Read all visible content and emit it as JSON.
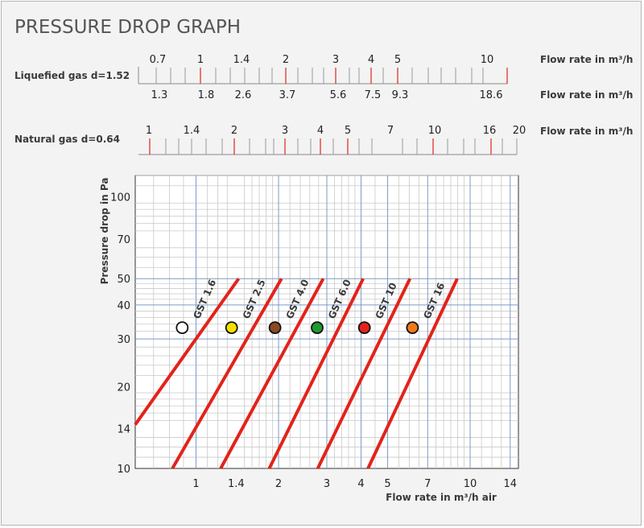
{
  "title": "PRESSURE DROP GRAPH",
  "colors": {
    "accent_line": "#e2231a",
    "grid": "#c9c9c9",
    "grid_major": "#7a9cc8",
    "title": "#555555"
  },
  "scales": {
    "flow_label": "Flow rate in m³/h",
    "liquefied": {
      "label": "Liquefied gas d=1.52",
      "top_ticks": [
        "0.7",
        "1",
        "1.4",
        "2",
        "3",
        "4",
        "5",
        "10"
      ],
      "bottom_ticks": [
        "1.3",
        "1.8",
        "2.6",
        "3.7",
        "5.6",
        "7.5",
        "9.3",
        "18.6"
      ]
    },
    "natural": {
      "label": "Natural gas d=0.64",
      "ticks": [
        "1",
        "1.4",
        "2",
        "3",
        "4",
        "5",
        "7",
        "10",
        "16",
        "20"
      ]
    }
  },
  "chart_data": {
    "type": "line",
    "title": "PRESSURE DROP GRAPH",
    "xlabel": "Flow rate in m³/h air",
    "ylabel": "Pressure drop in Pa",
    "x_scale": "log",
    "y_scale": "log",
    "xlim": [
      0.6,
      15
    ],
    "ylim": [
      10,
      120
    ],
    "x_ticks": [
      "1",
      "1.4",
      "2",
      "3",
      "4",
      "5",
      "7",
      "10",
      "14"
    ],
    "y_ticks": [
      "10",
      "14",
      "20",
      "30",
      "40",
      "50",
      "70",
      "100"
    ],
    "grid": true,
    "series": [
      {
        "name": "GST 1.6",
        "marker_color": "#ffffff",
        "x": [
          0.6,
          1.43
        ],
        "y": [
          14.5,
          50
        ]
      },
      {
        "name": "GST 2.5",
        "marker_color": "#f6e000",
        "x": [
          0.82,
          2.05
        ],
        "y": [
          10,
          50
        ]
      },
      {
        "name": "GST 4.0",
        "marker_color": "#8a4a22",
        "x": [
          1.23,
          2.91
        ],
        "y": [
          10,
          50
        ]
      },
      {
        "name": "GST 6.0",
        "marker_color": "#1f9a2e",
        "x": [
          1.85,
          4.07
        ],
        "y": [
          10,
          50
        ]
      },
      {
        "name": "GST 10",
        "marker_color": "#e2231a",
        "x": [
          2.78,
          6.03
        ],
        "y": [
          10,
          50
        ]
      },
      {
        "name": "GST 16",
        "marker_color": "#f07a1a",
        "x": [
          4.24,
          8.97
        ],
        "y": [
          10,
          50
        ]
      }
    ]
  }
}
